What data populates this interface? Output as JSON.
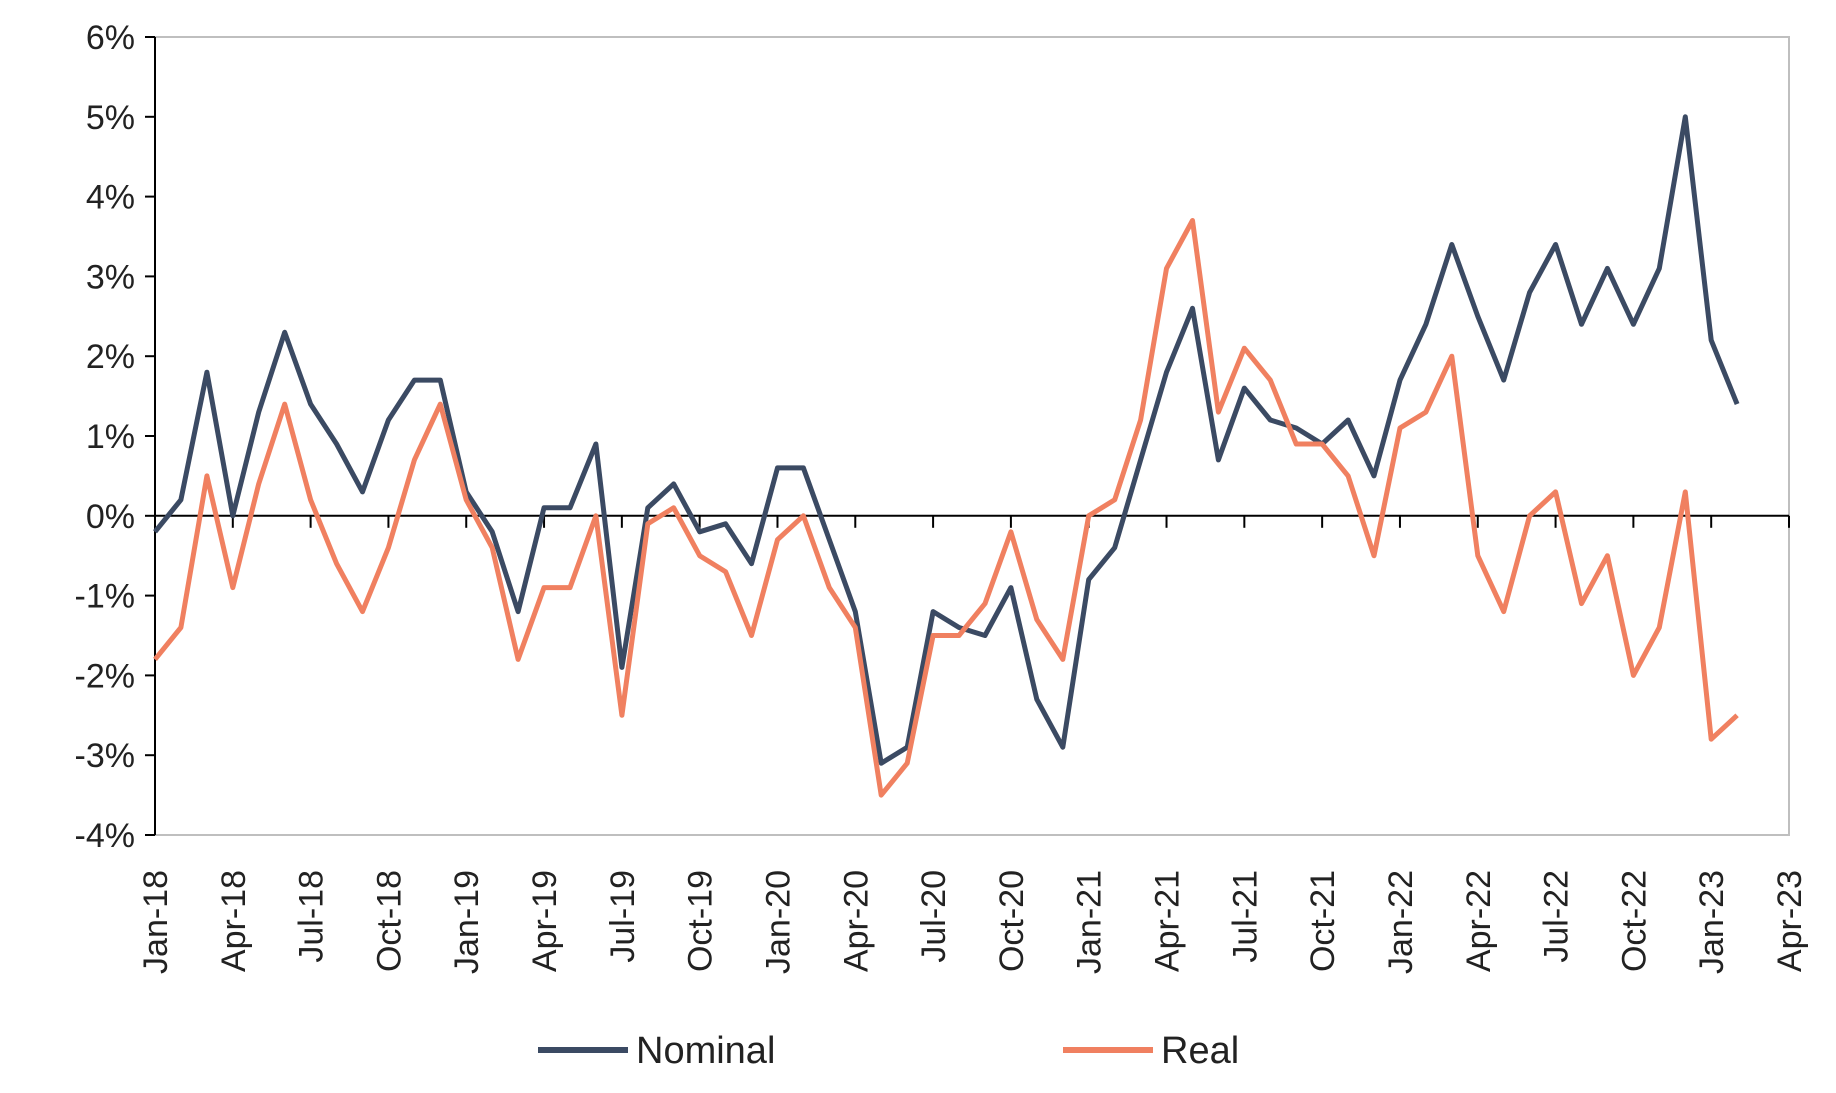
{
  "chart_data": {
    "type": "line",
    "title": "",
    "xlabel": "",
    "ylabel": "",
    "ylim": [
      -4,
      6
    ],
    "y_ticks": [
      6,
      5,
      4,
      3,
      2,
      1,
      0,
      -1,
      -2,
      -3,
      -4
    ],
    "y_tick_labels": [
      "6%",
      "5%",
      "4%",
      "3%",
      "2%",
      "1%",
      "0%",
      "-1%",
      "-2%",
      "-3%",
      "-4%"
    ],
    "x_tick_labels": [
      "Jan-18",
      "Apr-18",
      "Jul-18",
      "Oct-18",
      "Jan-19",
      "Apr-19",
      "Jul-19",
      "Oct-19",
      "Jan-20",
      "Apr-20",
      "Jul-20",
      "Oct-20",
      "Jan-21",
      "Apr-21",
      "Jul-21",
      "Oct-21",
      "Jan-22",
      "Apr-22",
      "Jul-22",
      "Oct-22",
      "Jan-23",
      "Apr-23"
    ],
    "x_months_range": [
      "Jan-18",
      "Apr-23"
    ],
    "legend_position": "bottom",
    "grid": false,
    "x": [
      "Jan-18",
      "Feb-18",
      "Mar-18",
      "Apr-18",
      "May-18",
      "Jun-18",
      "Jul-18",
      "Aug-18",
      "Sep-18",
      "Oct-18",
      "Nov-18",
      "Dec-18",
      "Jan-19",
      "Feb-19",
      "Mar-19",
      "Apr-19",
      "May-19",
      "Jun-19",
      "Jul-19",
      "Aug-19",
      "Sep-19",
      "Oct-19",
      "Nov-19",
      "Dec-19",
      "Jan-20",
      "Feb-20",
      "Mar-20",
      "Apr-20",
      "May-20",
      "Jun-20",
      "Jul-20",
      "Aug-20",
      "Sep-20",
      "Oct-20",
      "Nov-20",
      "Dec-20",
      "Jan-21",
      "Feb-21",
      "Mar-21",
      "Apr-21",
      "May-21",
      "Jun-21",
      "Jul-21",
      "Aug-21",
      "Sep-21",
      "Oct-21",
      "Nov-21",
      "Dec-21",
      "Jan-22",
      "Feb-22",
      "Mar-22",
      "Apr-22",
      "May-22",
      "Jun-22",
      "Jul-22",
      "Aug-22",
      "Sep-22",
      "Oct-22",
      "Nov-22",
      "Dec-22",
      "Jan-23",
      "Feb-23"
    ],
    "series": [
      {
        "name": "Nominal",
        "color": "#3b4a63",
        "values": [
          -0.2,
          0.2,
          1.8,
          0.0,
          1.3,
          2.3,
          1.4,
          0.9,
          0.3,
          1.2,
          1.7,
          1.7,
          0.3,
          -0.2,
          -1.2,
          0.1,
          0.1,
          0.9,
          -1.9,
          0.1,
          0.4,
          -0.2,
          -0.1,
          -0.6,
          0.6,
          0.6,
          -0.3,
          -1.2,
          -3.1,
          -2.9,
          -1.2,
          -1.4,
          -1.5,
          -0.9,
          -2.3,
          -2.9,
          -0.8,
          -0.4,
          0.7,
          1.8,
          2.6,
          0.7,
          1.6,
          1.2,
          1.1,
          0.9,
          1.2,
          0.5,
          1.7,
          2.4,
          3.4,
          2.5,
          1.7,
          2.8,
          3.4,
          2.4,
          3.1,
          2.4,
          3.1,
          5.0,
          2.2,
          1.4
        ]
      },
      {
        "name": "Real",
        "color": "#f08060",
        "values": [
          -1.8,
          -1.4,
          0.5,
          -0.9,
          0.4,
          1.4,
          0.2,
          -0.6,
          -1.2,
          -0.4,
          0.7,
          1.4,
          0.2,
          -0.4,
          -1.8,
          -0.9,
          -0.9,
          0.0,
          -2.5,
          -0.1,
          0.1,
          -0.5,
          -0.7,
          -1.5,
          -0.3,
          0.0,
          -0.9,
          -1.4,
          -3.5,
          -3.1,
          -1.5,
          -1.5,
          -1.1,
          -0.2,
          -1.3,
          -1.8,
          0.0,
          0.2,
          1.2,
          3.1,
          3.7,
          1.3,
          2.1,
          1.7,
          0.9,
          0.9,
          0.5,
          -0.5,
          1.1,
          1.3,
          2.0,
          -0.5,
          -1.2,
          0.0,
          0.3,
          -1.1,
          -0.5,
          -2.0,
          -1.4,
          0.3,
          -2.8,
          -2.5
        ]
      }
    ],
    "zero_line_color": "#000000",
    "axis_color": "#000000",
    "frame_color": "#bfbfbf"
  }
}
